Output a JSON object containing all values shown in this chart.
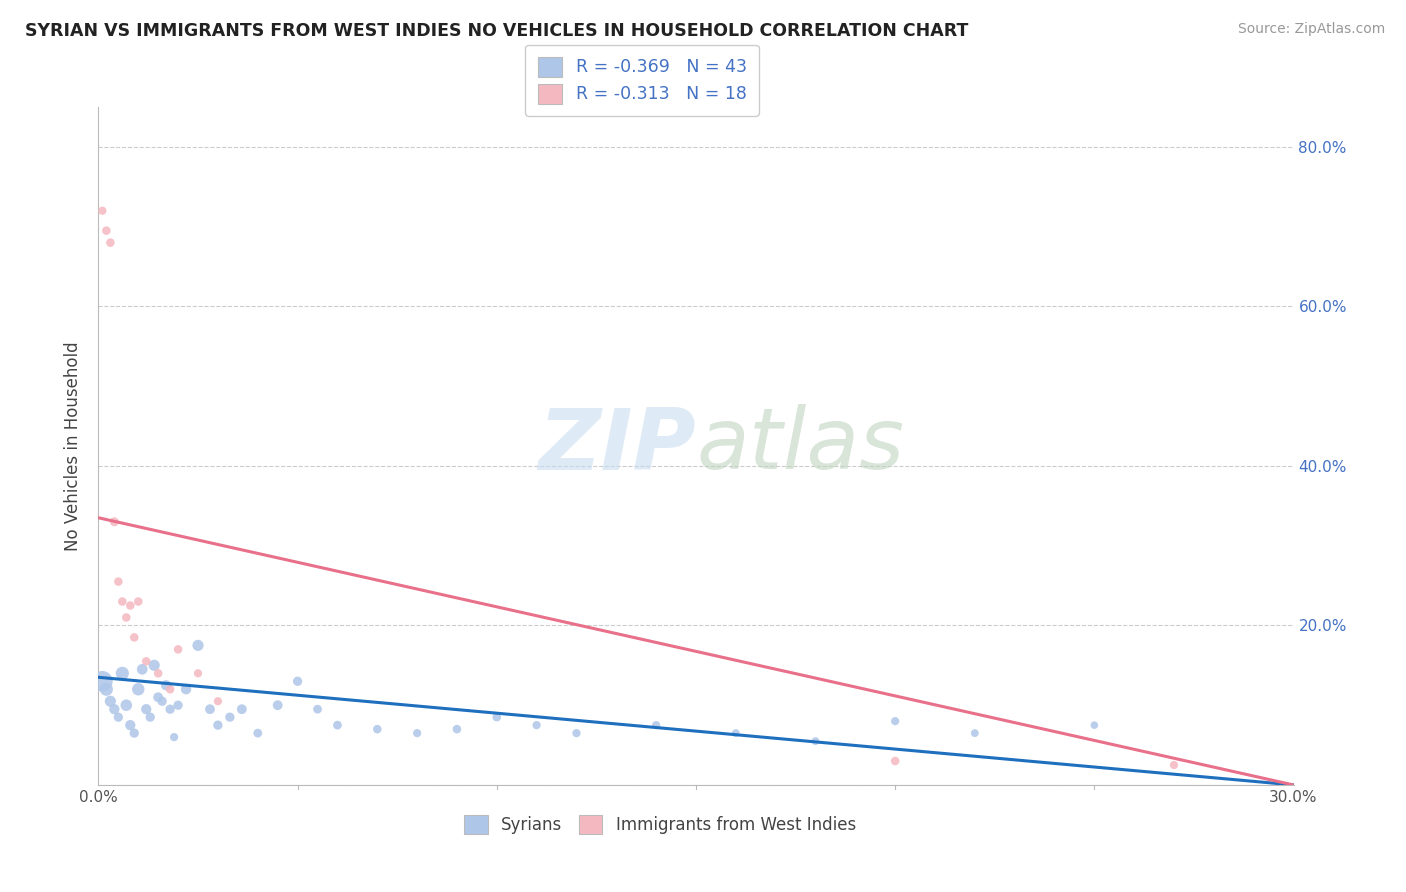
{
  "title": "SYRIAN VS IMMIGRANTS FROM WEST INDIES NO VEHICLES IN HOUSEHOLD CORRELATION CHART",
  "source": "Source: ZipAtlas.com",
  "ylabel": "No Vehicles in Household",
  "xlim": [
    0.0,
    0.3
  ],
  "ylim": [
    0.0,
    0.85
  ],
  "legend_text_blue": "R = -0.369   N = 43",
  "legend_text_pink": "R = -0.313   N = 18",
  "bottom_legend_blue": "Syrians",
  "bottom_legend_pink": "Immigrants from West Indies",
  "blue_color": "#aec6e8",
  "pink_color": "#f4b8c1",
  "blue_line_color": "#1f6fbf",
  "pink_line_color": "#e8708a",
  "right_yticks": [
    0.2,
    0.4,
    0.6,
    0.8
  ],
  "right_yticklabels": [
    "20.0%",
    "40.0%",
    "60.0%",
    "80.0%"
  ],
  "syrians_x": [
    0.001,
    0.002,
    0.003,
    0.004,
    0.005,
    0.006,
    0.007,
    0.008,
    0.009,
    0.01,
    0.011,
    0.012,
    0.013,
    0.014,
    0.015,
    0.016,
    0.017,
    0.018,
    0.019,
    0.02,
    0.022,
    0.025,
    0.028,
    0.03,
    0.033,
    0.036,
    0.04,
    0.045,
    0.05,
    0.055,
    0.06,
    0.07,
    0.08,
    0.09,
    0.1,
    0.11,
    0.12,
    0.14,
    0.16,
    0.18,
    0.2,
    0.22,
    0.25
  ],
  "syrians_y": [
    0.13,
    0.12,
    0.105,
    0.095,
    0.085,
    0.14,
    0.1,
    0.075,
    0.065,
    0.12,
    0.145,
    0.095,
    0.085,
    0.15,
    0.11,
    0.105,
    0.125,
    0.095,
    0.06,
    0.1,
    0.12,
    0.175,
    0.095,
    0.075,
    0.085,
    0.095,
    0.065,
    0.1,
    0.13,
    0.095,
    0.075,
    0.07,
    0.065,
    0.07,
    0.085,
    0.075,
    0.065,
    0.075,
    0.065,
    0.055,
    0.08,
    0.065,
    0.075
  ],
  "syrians_size": [
    220,
    90,
    65,
    55,
    45,
    90,
    70,
    55,
    45,
    80,
    60,
    55,
    45,
    65,
    50,
    45,
    55,
    45,
    35,
    45,
    55,
    65,
    50,
    45,
    45,
    50,
    40,
    50,
    45,
    40,
    40,
    38,
    35,
    38,
    38,
    35,
    35,
    35,
    32,
    32,
    35,
    32,
    30
  ],
  "westindies_x": [
    0.001,
    0.002,
    0.003,
    0.004,
    0.005,
    0.006,
    0.007,
    0.008,
    0.009,
    0.01,
    0.012,
    0.015,
    0.018,
    0.02,
    0.025,
    0.03,
    0.2,
    0.27
  ],
  "westindies_y": [
    0.72,
    0.695,
    0.68,
    0.33,
    0.255,
    0.23,
    0.21,
    0.225,
    0.185,
    0.23,
    0.155,
    0.14,
    0.12,
    0.17,
    0.14,
    0.105,
    0.03,
    0.025
  ],
  "westindies_size": [
    35,
    38,
    38,
    42,
    38,
    38,
    38,
    38,
    38,
    38,
    38,
    38,
    38,
    38,
    35,
    35,
    38,
    35
  ],
  "blue_trendline": [
    0.0,
    0.3,
    0.135,
    0.0
  ],
  "pink_trendline": [
    0.0,
    0.3,
    0.335,
    0.0
  ]
}
